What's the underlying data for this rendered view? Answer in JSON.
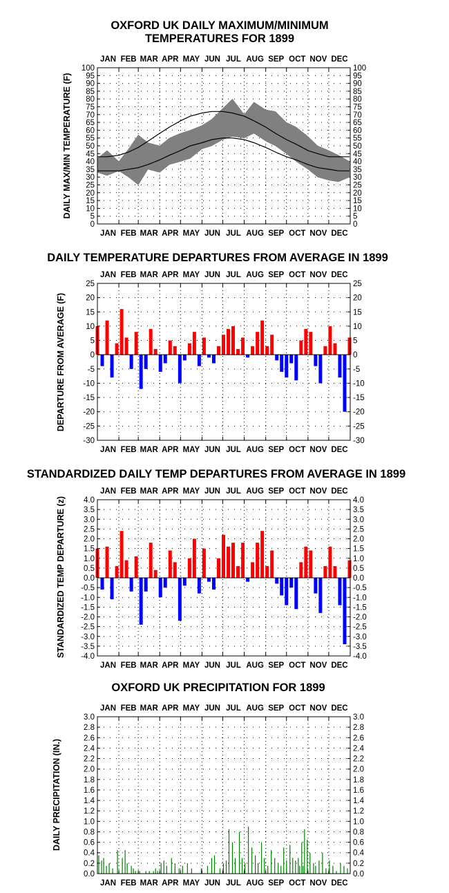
{
  "months": [
    "JAN",
    "FEB",
    "MAR",
    "APR",
    "MAY",
    "JUN",
    "JUL",
    "AUG",
    "SEP",
    "OCT",
    "NOV",
    "DEC"
  ],
  "chart_data": [
    {
      "type": "area",
      "title_line1": "OXFORD UK DAILY MAXIMUM/MINIMUM",
      "title_line2": "TEMPERATURES FOR 1899",
      "ylabel": "DAILY MAX/MIN TEMPERATURE (F)",
      "ylim": [
        0,
        100
      ],
      "yticks": [
        "0",
        "5",
        "10",
        "15",
        "20",
        "25",
        "30",
        "35",
        "40",
        "45",
        "50",
        "55",
        "60",
        "65",
        "70",
        "75",
        "80",
        "85",
        "90",
        "95",
        "100"
      ],
      "x_days": [
        1,
        15,
        32,
        46,
        60,
        74,
        91,
        105,
        121,
        135,
        152,
        166,
        182,
        196,
        213,
        227,
        244,
        258,
        274,
        288,
        305,
        319,
        335,
        349,
        365
      ],
      "daily_max": [
        42,
        47,
        40,
        48,
        57,
        52,
        50,
        55,
        58,
        60,
        63,
        67,
        74,
        80,
        70,
        78,
        73,
        72,
        65,
        62,
        56,
        50,
        47,
        44,
        40
      ],
      "daily_min": [
        33,
        31,
        34,
        30,
        25,
        35,
        33,
        38,
        40,
        42,
        48,
        50,
        54,
        56,
        55,
        58,
        53,
        50,
        45,
        40,
        35,
        30,
        28,
        27,
        30
      ],
      "normal_max": [
        43,
        43,
        44,
        46,
        49,
        53,
        58,
        62,
        66,
        69,
        71,
        72,
        72,
        71,
        69,
        66,
        62,
        58,
        54,
        51,
        47,
        45,
        43,
        43,
        43
      ],
      "normal_min": [
        34,
        34,
        34,
        35,
        36,
        38,
        41,
        44,
        47,
        50,
        52,
        54,
        55,
        55,
        54,
        52,
        49,
        46,
        43,
        41,
        38,
        36,
        35,
        34,
        34
      ],
      "colors": {
        "range": "#808080",
        "normal": "#000000"
      }
    },
    {
      "type": "bar",
      "title": "DAILY TEMPERATURE DEPARTURES FROM AVERAGE IN 1899",
      "ylabel": "DEPARTURE FROM AVERAGE  (F)",
      "ylim": [
        -30,
        25
      ],
      "yticks": [
        "-30",
        "-25",
        "-20",
        "-15",
        "-10",
        "-5",
        "0",
        "5",
        "10",
        "15",
        "20",
        "25"
      ],
      "x_days": [
        1,
        8,
        15,
        22,
        29,
        36,
        43,
        50,
        57,
        64,
        71,
        78,
        85,
        92,
        99,
        106,
        113,
        120,
        127,
        134,
        141,
        148,
        155,
        162,
        169,
        176,
        183,
        190,
        197,
        204,
        211,
        218,
        225,
        232,
        239,
        246,
        253,
        260,
        267,
        274,
        281,
        288,
        295,
        302,
        309,
        316,
        323,
        330,
        337,
        344,
        351,
        358,
        365
      ],
      "values": [
        10,
        -4,
        12,
        -8,
        4,
        16,
        6,
        -5,
        8,
        -12,
        -5,
        9,
        2,
        -6,
        -3,
        5,
        3,
        -10,
        -2,
        4,
        8,
        -4,
        6,
        -1,
        -3,
        3,
        7,
        9,
        10,
        2,
        6,
        -1,
        3,
        8,
        12,
        3,
        7,
        -2,
        -6,
        -8,
        -3,
        -9,
        5,
        9,
        8,
        -4,
        -10,
        3,
        10,
        4,
        -8,
        -20,
        6
      ],
      "colors": {
        "positive": "#ff0000",
        "negative": "#0000ff"
      }
    },
    {
      "type": "bar",
      "title": "STANDARDIZED DAILY TEMP DEPARTURES FROM AVERAGE IN 1899",
      "ylabel": "STANDARDIZED TEMP DEPARTURE  (z)",
      "ylim": [
        -4.0,
        4.0
      ],
      "yticks": [
        "-4.0",
        "-3.5",
        "-3.0",
        "-2.5",
        "-2.0",
        "-1.5",
        "-1.0",
        "-0.5",
        "0.0",
        "0.5",
        "1.0",
        "1.5",
        "2.0",
        "2.5",
        "3.0",
        "3.5",
        "4.0"
      ],
      "x_days": [
        1,
        8,
        15,
        22,
        29,
        36,
        43,
        50,
        57,
        64,
        71,
        78,
        85,
        92,
        99,
        106,
        113,
        120,
        127,
        134,
        141,
        148,
        155,
        162,
        169,
        176,
        183,
        190,
        197,
        204,
        211,
        218,
        225,
        232,
        239,
        246,
        253,
        260,
        267,
        274,
        281,
        288,
        295,
        302,
        309,
        316,
        323,
        330,
        337,
        344,
        351,
        358,
        365
      ],
      "values": [
        1.5,
        -0.6,
        1.6,
        -1.1,
        0.6,
        2.4,
        0.9,
        -0.7,
        1.1,
        -2.4,
        -0.7,
        1.8,
        0.4,
        -1.0,
        -0.5,
        1.4,
        0.8,
        -2.2,
        -0.4,
        1.0,
        2.0,
        -0.8,
        1.5,
        -0.2,
        -0.6,
        1.0,
        2.2,
        1.6,
        1.8,
        0.6,
        1.8,
        -0.2,
        0.8,
        1.8,
        2.4,
        0.6,
        1.4,
        -0.3,
        -0.9,
        -1.4,
        -0.5,
        -1.6,
        0.8,
        1.6,
        1.4,
        -0.8,
        -1.8,
        0.6,
        1.6,
        0.6,
        -1.4,
        -3.4,
        0.9
      ],
      "colors": {
        "positive": "#ff0000",
        "negative": "#0000ff"
      }
    },
    {
      "type": "bar",
      "title": "OXFORD UK PRECIPITATION FOR 1899",
      "ylabel": "DAILY PRECIPITATION (IN.)",
      "ylim": [
        0,
        3.0
      ],
      "yticks": [
        "0.0",
        "0.2",
        "0.4",
        "0.6",
        "0.8",
        "1.0",
        "1.2",
        "1.4",
        "1.6",
        "1.8",
        "2.0",
        "2.2",
        "2.4",
        "2.6",
        "2.8",
        "3.0"
      ],
      "x_days": [
        3,
        7,
        10,
        14,
        18,
        23,
        30,
        37,
        41,
        44,
        50,
        53,
        56,
        62,
        71,
        76,
        82,
        85,
        88,
        93,
        97,
        101,
        108,
        113,
        119,
        124,
        131,
        137,
        151,
        160,
        166,
        170,
        178,
        183,
        187,
        191,
        196,
        200,
        206,
        210,
        214,
        219,
        224,
        229,
        233,
        238,
        242,
        247,
        252,
        257,
        262,
        266,
        270,
        274,
        279,
        283,
        287,
        291,
        293,
        296,
        298,
        300,
        304,
        308,
        313,
        316,
        321,
        326,
        331,
        336,
        341,
        346,
        352,
        357,
        362
      ],
      "values": [
        0.35,
        0.25,
        0.3,
        0.15,
        0.2,
        0.1,
        0.45,
        0.3,
        0.45,
        0.2,
        0.15,
        0.1,
        0.05,
        0.05,
        0.05,
        0.05,
        0.05,
        0.1,
        0.05,
        0.2,
        0.25,
        0.15,
        0.3,
        0.2,
        0.1,
        0.15,
        0.2,
        0.1,
        0.1,
        0.15,
        0.3,
        0.35,
        0.1,
        0.2,
        0.25,
        0.85,
        0.6,
        0.3,
        0.8,
        0.3,
        0.2,
        0.9,
        0.5,
        0.35,
        0.2,
        0.6,
        0.3,
        0.15,
        0.45,
        0.3,
        0.2,
        0.15,
        0.5,
        0.25,
        0.55,
        0.3,
        0.25,
        0.3,
        0.15,
        0.6,
        0.15,
        0.85,
        0.65,
        0.4,
        0.2,
        0.15,
        0.25,
        0.4,
        0.1,
        0.25,
        0.15,
        0.05,
        0.2,
        0.15,
        0.1
      ],
      "colors": {
        "bars": "#008000"
      }
    }
  ]
}
